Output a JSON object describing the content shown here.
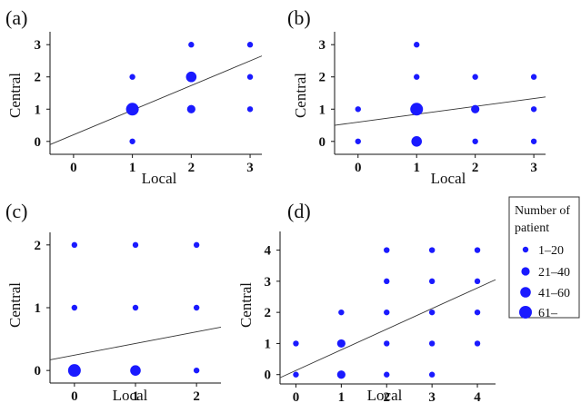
{
  "size_legend": {
    "title_lines": [
      "Number of",
      "patient"
    ],
    "entries": [
      "1–20",
      "21–40",
      "41–60",
      "61–"
    ]
  },
  "chart_data": [
    {
      "type": "scatter",
      "panel_label": "(a)",
      "xlabel": "Local",
      "ylabel": "Central",
      "xlim": [
        -0.4,
        3.2
      ],
      "ylim": [
        -0.4,
        3.4
      ],
      "xticks": [
        0,
        1,
        2,
        3
      ],
      "yticks": [
        0,
        1,
        2,
        3
      ],
      "points": [
        {
          "x": 1,
          "y": 0,
          "size_class": 1
        },
        {
          "x": 1,
          "y": 1,
          "size_class": 4
        },
        {
          "x": 1,
          "y": 2,
          "size_class": 1
        },
        {
          "x": 2,
          "y": 1,
          "size_class": 2
        },
        {
          "x": 2,
          "y": 2,
          "size_class": 3
        },
        {
          "x": 2,
          "y": 3,
          "size_class": 1
        },
        {
          "x": 3,
          "y": 1,
          "size_class": 1
        },
        {
          "x": 3,
          "y": 2,
          "size_class": 1
        },
        {
          "x": 3,
          "y": 3,
          "size_class": 1
        }
      ],
      "fit_line": {
        "x": [
          -0.4,
          3.2
        ],
        "y": [
          -0.1,
          2.65
        ]
      },
      "grid": false
    },
    {
      "type": "scatter",
      "panel_label": "(b)",
      "xlabel": "Local",
      "ylabel": "Central",
      "xlim": [
        -0.4,
        3.2
      ],
      "ylim": [
        -0.4,
        3.4
      ],
      "xticks": [
        0,
        1,
        2,
        3
      ],
      "yticks": [
        0,
        1,
        2,
        3
      ],
      "points": [
        {
          "x": 0,
          "y": 0,
          "size_class": 1
        },
        {
          "x": 0,
          "y": 1,
          "size_class": 1
        },
        {
          "x": 1,
          "y": 0,
          "size_class": 3
        },
        {
          "x": 1,
          "y": 1,
          "size_class": 4
        },
        {
          "x": 1,
          "y": 2,
          "size_class": 1
        },
        {
          "x": 1,
          "y": 3,
          "size_class": 1
        },
        {
          "x": 2,
          "y": 0,
          "size_class": 1
        },
        {
          "x": 2,
          "y": 1,
          "size_class": 2
        },
        {
          "x": 2,
          "y": 2,
          "size_class": 1
        },
        {
          "x": 3,
          "y": 0,
          "size_class": 1
        },
        {
          "x": 3,
          "y": 1,
          "size_class": 1
        },
        {
          "x": 3,
          "y": 2,
          "size_class": 1
        }
      ],
      "fit_line": {
        "x": [
          -0.4,
          3.2
        ],
        "y": [
          0.5,
          1.38
        ]
      },
      "grid": false
    },
    {
      "type": "scatter",
      "panel_label": "(c)",
      "xlabel": "Local",
      "ylabel": "Central",
      "xlim": [
        -0.4,
        2.4
      ],
      "ylim": [
        -0.2,
        2.2
      ],
      "xticks": [
        0,
        1,
        2
      ],
      "yticks": [
        0,
        1,
        2
      ],
      "points": [
        {
          "x": 0,
          "y": 0,
          "size_class": 4
        },
        {
          "x": 0,
          "y": 1,
          "size_class": 1
        },
        {
          "x": 0,
          "y": 2,
          "size_class": 1
        },
        {
          "x": 1,
          "y": 0,
          "size_class": 3
        },
        {
          "x": 1,
          "y": 1,
          "size_class": 1
        },
        {
          "x": 1,
          "y": 2,
          "size_class": 1
        },
        {
          "x": 2,
          "y": 0,
          "size_class": 1
        },
        {
          "x": 2,
          "y": 1,
          "size_class": 1
        },
        {
          "x": 2,
          "y": 2,
          "size_class": 1
        }
      ],
      "fit_line": {
        "x": [
          -0.4,
          2.4
        ],
        "y": [
          0.17,
          0.69
        ]
      },
      "grid": false
    },
    {
      "type": "scatter",
      "panel_label": "(d)",
      "xlabel": "Local",
      "ylabel": "Central",
      "xlim": [
        -0.35,
        4.4
      ],
      "ylim": [
        -0.3,
        4.6
      ],
      "xticks": [
        0,
        1,
        2,
        3,
        4
      ],
      "yticks": [
        0,
        1,
        2,
        3,
        4
      ],
      "points": [
        {
          "x": 0,
          "y": 0,
          "size_class": 1
        },
        {
          "x": 0,
          "y": 1,
          "size_class": 1
        },
        {
          "x": 1,
          "y": 0,
          "size_class": 2
        },
        {
          "x": 1,
          "y": 1,
          "size_class": 2
        },
        {
          "x": 1,
          "y": 2,
          "size_class": 1
        },
        {
          "x": 2,
          "y": 0,
          "size_class": 1
        },
        {
          "x": 2,
          "y": 1,
          "size_class": 1
        },
        {
          "x": 2,
          "y": 2,
          "size_class": 1
        },
        {
          "x": 2,
          "y": 3,
          "size_class": 1
        },
        {
          "x": 2,
          "y": 4,
          "size_class": 1
        },
        {
          "x": 3,
          "y": 0,
          "size_class": 1
        },
        {
          "x": 3,
          "y": 1,
          "size_class": 1
        },
        {
          "x": 3,
          "y": 2,
          "size_class": 1
        },
        {
          "x": 3,
          "y": 3,
          "size_class": 1
        },
        {
          "x": 3,
          "y": 4,
          "size_class": 1
        },
        {
          "x": 4,
          "y": 1,
          "size_class": 1
        },
        {
          "x": 4,
          "y": 2,
          "size_class": 1
        },
        {
          "x": 4,
          "y": 3,
          "size_class": 1
        },
        {
          "x": 4,
          "y": 4,
          "size_class": 1
        }
      ],
      "fit_line": {
        "x": [
          -0.35,
          4.4
        ],
        "y": [
          -0.1,
          3.05
        ]
      },
      "grid": false
    }
  ]
}
